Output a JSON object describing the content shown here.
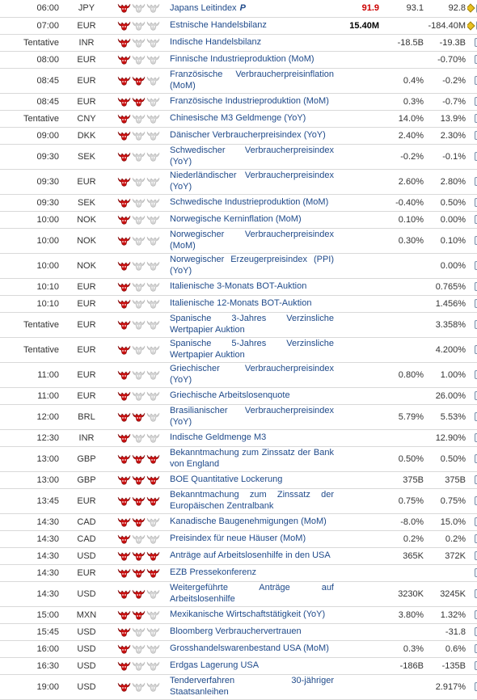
{
  "colors": {
    "bull_active": "#cc1111",
    "bull_inactive": "#d6d6d6",
    "event_text": "#1f4a8a",
    "actual_highlight": "#cc0000"
  },
  "rows": [
    {
      "time": "06:00",
      "cur": "JPY",
      "imp": 1,
      "event": "Japans Leitindex",
      "flag": "P",
      "actual": "91.9",
      "actual_style": "red",
      "forecast": "93.1",
      "previous": "92.8",
      "diamond": true
    },
    {
      "time": "07:00",
      "cur": "EUR",
      "imp": 1,
      "event": "Estnische Handelsbilanz",
      "actual": "15.40M",
      "actual_style": "black",
      "forecast": "",
      "previous": "-184.40M",
      "diamond": true
    },
    {
      "time": "Tentative",
      "cur": "INR",
      "imp": 1,
      "event": "Indische Handelsbilanz",
      "actual": "",
      "forecast": "-18.5B",
      "previous": "-19.3B"
    },
    {
      "time": "08:00",
      "cur": "EUR",
      "imp": 1,
      "event": "Finnische Industrieproduktion (MoM)",
      "actual": "",
      "forecast": "",
      "previous": "-0.70%"
    },
    {
      "time": "08:45",
      "cur": "EUR",
      "imp": 2,
      "event": "Französische Verbraucherpreisinflation (MoM)",
      "actual": "",
      "forecast": "0.4%",
      "previous": "-0.2%"
    },
    {
      "time": "08:45",
      "cur": "EUR",
      "imp": 2,
      "event": "Französische Industrieproduktion (MoM)",
      "actual": "",
      "forecast": "0.3%",
      "previous": "-0.7%"
    },
    {
      "time": "Tentative",
      "cur": "CNY",
      "imp": 1,
      "event": "Chinesische M3 Geldmenge (YoY)",
      "actual": "",
      "forecast": "14.0%",
      "previous": "13.9%"
    },
    {
      "time": "09:00",
      "cur": "DKK",
      "imp": 1,
      "event": "Dänischer Verbraucherpreisindex (YoY)",
      "actual": "",
      "forecast": "2.40%",
      "previous": "2.30%"
    },
    {
      "time": "09:30",
      "cur": "SEK",
      "imp": 1,
      "event": "Schwedischer Verbraucherpreisindex (YoY)",
      "actual": "",
      "forecast": "-0.2%",
      "previous": "-0.1%"
    },
    {
      "time": "09:30",
      "cur": "EUR",
      "imp": 1,
      "event": "Niederländischer Verbraucherpreisindex (YoY)",
      "actual": "",
      "forecast": "2.60%",
      "previous": "2.80%"
    },
    {
      "time": "09:30",
      "cur": "SEK",
      "imp": 1,
      "event": "Schwedische Industrieproduktion (MoM)",
      "actual": "",
      "forecast": "-0.40%",
      "previous": "0.50%"
    },
    {
      "time": "10:00",
      "cur": "NOK",
      "imp": 1,
      "event": "Norwegische Kerninflation (MoM)",
      "actual": "",
      "forecast": "0.10%",
      "previous": "0.00%"
    },
    {
      "time": "10:00",
      "cur": "NOK",
      "imp": 1,
      "event": "Norwegischer Verbraucherpreisindex (MoM)",
      "actual": "",
      "forecast": "0.30%",
      "previous": "0.10%"
    },
    {
      "time": "10:00",
      "cur": "NOK",
      "imp": 1,
      "event": "Norwegischer Erzeugerpreisindex (PPI) (YoY)",
      "actual": "",
      "forecast": "",
      "previous": "0.00%"
    },
    {
      "time": "10:10",
      "cur": "EUR",
      "imp": 1,
      "event": "Italienische 3-Monats BOT-Auktion",
      "actual": "",
      "forecast": "",
      "previous": "0.765%"
    },
    {
      "time": "10:10",
      "cur": "EUR",
      "imp": 1,
      "event": "Italienische 12-Monats BOT-Auktion",
      "actual": "",
      "forecast": "",
      "previous": "1.456%"
    },
    {
      "time": "Tentative",
      "cur": "EUR",
      "imp": 1,
      "event": "Spanische 3-Jahres Verzinsliche Wertpapier Auktion",
      "actual": "",
      "forecast": "",
      "previous": "3.358%"
    },
    {
      "time": "Tentative",
      "cur": "EUR",
      "imp": 1,
      "event": "Spanische 5-Jahres Verzinsliche Wertpapier Auktion",
      "actual": "",
      "forecast": "",
      "previous": "4.200%"
    },
    {
      "time": "11:00",
      "cur": "EUR",
      "imp": 1,
      "event": "Griechischer Verbraucherpreisindex (YoY)",
      "actual": "",
      "forecast": "0.80%",
      "previous": "1.00%"
    },
    {
      "time": "11:00",
      "cur": "EUR",
      "imp": 1,
      "event": "Griechische Arbeitslosenquote",
      "actual": "",
      "forecast": "",
      "previous": "26.00%"
    },
    {
      "time": "12:00",
      "cur": "BRL",
      "imp": 2,
      "event": "Brasilianischer Verbraucherpreisindex (YoY)",
      "actual": "",
      "forecast": "5.79%",
      "previous": "5.53%"
    },
    {
      "time": "12:30",
      "cur": "INR",
      "imp": 1,
      "event": "Indische Geldmenge M3",
      "actual": "",
      "forecast": "",
      "previous": "12.90%"
    },
    {
      "time": "13:00",
      "cur": "GBP",
      "imp": 3,
      "event": "Bekanntmachung zum Zinssatz der Bank von England",
      "actual": "",
      "forecast": "0.50%",
      "previous": "0.50%"
    },
    {
      "time": "13:00",
      "cur": "GBP",
      "imp": 3,
      "event": "BOE Quantitative Lockerung",
      "actual": "",
      "forecast": "375B",
      "previous": "375B"
    },
    {
      "time": "13:45",
      "cur": "EUR",
      "imp": 3,
      "event": "Bekanntmachung zum Zinssatz der Europäischen Zentralbank",
      "actual": "",
      "forecast": "0.75%",
      "previous": "0.75%"
    },
    {
      "time": "14:30",
      "cur": "CAD",
      "imp": 2,
      "event": "Kanadische Baugenehmigungen (MoM)",
      "actual": "",
      "forecast": "-8.0%",
      "previous": "15.0%"
    },
    {
      "time": "14:30",
      "cur": "CAD",
      "imp": 1,
      "event": "Preisindex für neue Häuser (MoM)",
      "actual": "",
      "forecast": "0.2%",
      "previous": "0.2%"
    },
    {
      "time": "14:30",
      "cur": "USD",
      "imp": 3,
      "event": "Anträge auf Arbeitslosenhilfe in den USA",
      "actual": "",
      "forecast": "365K",
      "previous": "372K"
    },
    {
      "time": "14:30",
      "cur": "EUR",
      "imp": 3,
      "event": "EZB Pressekonferenz",
      "actual": "",
      "forecast": "",
      "previous": ""
    },
    {
      "time": "14:30",
      "cur": "USD",
      "imp": 2,
      "event": "Weitergeführte Anträge auf Arbeitslosenhilfe",
      "actual": "",
      "forecast": "3230K",
      "previous": "3245K"
    },
    {
      "time": "15:00",
      "cur": "MXN",
      "imp": 2,
      "event": "Mexikanische Wirtschaftstätigkeit (YoY)",
      "actual": "",
      "forecast": "3.80%",
      "previous": "1.32%"
    },
    {
      "time": "15:45",
      "cur": "USD",
      "imp": 1,
      "event": "Bloomberg Verbrauchervertrauen",
      "actual": "",
      "forecast": "",
      "previous": "-31.8"
    },
    {
      "time": "16:00",
      "cur": "USD",
      "imp": 1,
      "event": "Grosshandelswarenbestand USA (MoM)",
      "actual": "",
      "forecast": "0.3%",
      "previous": "0.6%"
    },
    {
      "time": "16:30",
      "cur": "USD",
      "imp": 1,
      "event": "Erdgas Lagerung USA",
      "actual": "",
      "forecast": "-186B",
      "previous": "-135B"
    },
    {
      "time": "19:00",
      "cur": "USD",
      "imp": 1,
      "event": "Tenderverfahren 30-jähriger Staatsanleihen",
      "actual": "",
      "forecast": "",
      "previous": "2.917%"
    }
  ]
}
